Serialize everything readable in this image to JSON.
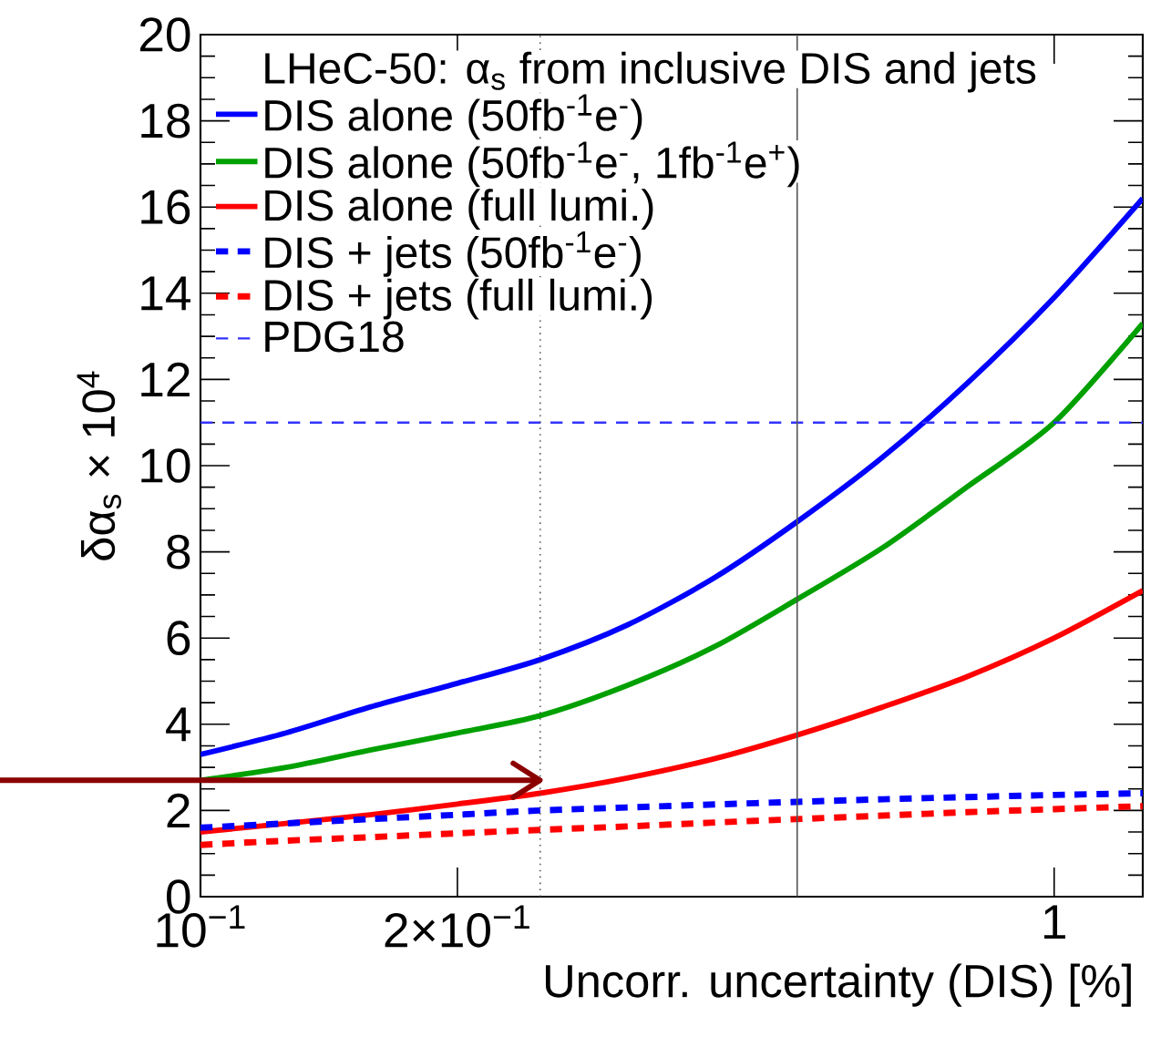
{
  "chart_data": {
    "type": "line",
    "xlabel": "Uncorr. uncertainty (DIS) [%]",
    "ylabel": "δα$_{s}$ × 10$^{4}$",
    "legend_title": "LHeC-50: α$_{s}$ from inclusive DIS and jets",
    "log": "x",
    "xlim": [
      0.1,
      1.27
    ],
    "ylim": [
      0,
      20
    ],
    "xticks": [
      {
        "value": 0.1,
        "label": "10$^{−1}$"
      },
      {
        "value": 0.2,
        "label": "2×10$^{−1}$"
      },
      1
    ],
    "yticks": [
      0,
      2,
      4,
      6,
      8,
      10,
      12,
      14,
      16,
      18,
      20
    ],
    "x": [
      0.1,
      0.126,
      0.158,
      0.2,
      0.25,
      0.316,
      0.4,
      0.5,
      0.63,
      0.79,
      1.0,
      1.27
    ],
    "legend": "top left",
    "grid": false,
    "marker": "none",
    "series": [
      {
        "name": "DIS alone (50fb$^{-1}$e$^{-}$)",
        "color": "#0000ff",
        "line_style": "solid",
        "values": [
          3.3,
          3.8,
          4.4,
          4.95,
          5.5,
          6.3,
          7.4,
          8.7,
          10.2,
          11.9,
          13.9,
          16.2
        ]
      },
      {
        "name": "DIS alone (50fb$^{-1}$e$^{-}$, 1fb$^{-1}$e$^{+}$)",
        "color": "#00a000",
        "line_style": "solid",
        "values": [
          2.7,
          3.0,
          3.4,
          3.8,
          4.2,
          4.9,
          5.8,
          6.9,
          8.1,
          9.5,
          11.0,
          13.3
        ]
      },
      {
        "name": "DIS alone (full lumi.)",
        "color": "#ff0000",
        "line_style": "solid",
        "values": [
          1.5,
          1.7,
          1.9,
          2.15,
          2.4,
          2.75,
          3.2,
          3.75,
          4.4,
          5.1,
          6.0,
          7.1
        ]
      },
      {
        "name": "DIS + jets (50fb$^{-1}$e$^{-}$)",
        "color": "#0000ff",
        "line_style": "dashed",
        "values": [
          1.6,
          1.7,
          1.8,
          1.9,
          2.0,
          2.07,
          2.14,
          2.2,
          2.26,
          2.31,
          2.36,
          2.4
        ]
      },
      {
        "name": "DIS + jets (full lumi.)",
        "color": "#ff0000",
        "line_style": "dashed",
        "values": [
          1.2,
          1.3,
          1.38,
          1.47,
          1.55,
          1.63,
          1.72,
          1.8,
          1.88,
          1.96,
          2.03,
          2.1
        ]
      }
    ],
    "ref_lines": [
      {
        "axis": "y",
        "value": 11,
        "label": "PDG18",
        "color": "#3333ff",
        "line_style": "dashed"
      },
      {
        "axis": "y",
        "value": 2.7,
        "color": "#8b0000",
        "line_style": "solid"
      },
      {
        "axis": "x",
        "value": 0.25,
        "color": "#555555",
        "line_style": "dotted"
      },
      {
        "axis": "x",
        "value": 0.5,
        "color": "#555555",
        "line_style": "solid"
      }
    ]
  }
}
